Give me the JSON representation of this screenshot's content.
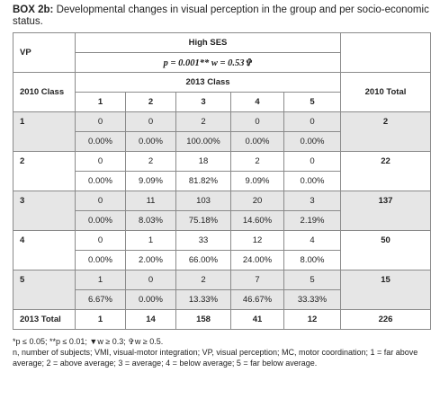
{
  "caption": {
    "label": "BOX 2b:",
    "text": " Developmental changes in visual perception in the group and per socio-economic status."
  },
  "table": {
    "vp_label": "VP",
    "group_label": "High SES",
    "stat_text": "p = 0.001** w = 0.53✞",
    "row_group_label": "2010 Class",
    "col_group_label": "2013 Class",
    "total_col_label": "2010 Total",
    "col_headers": [
      "1",
      "2",
      "3",
      "4",
      "5"
    ],
    "rows": [
      {
        "label": "1",
        "counts": [
          "0",
          "0",
          "2",
          "0",
          "0"
        ],
        "percents": [
          "0.00%",
          "0.00%",
          "100.00%",
          "0.00%",
          "0.00%"
        ],
        "total": "2"
      },
      {
        "label": "2",
        "counts": [
          "0",
          "2",
          "18",
          "2",
          "0"
        ],
        "percents": [
          "0.00%",
          "9.09%",
          "81.82%",
          "9.09%",
          "0.00%"
        ],
        "total": "22"
      },
      {
        "label": "3",
        "counts": [
          "0",
          "11",
          "103",
          "20",
          "3"
        ],
        "percents": [
          "0.00%",
          "8.03%",
          "75.18%",
          "14.60%",
          "2.19%"
        ],
        "total": "137"
      },
      {
        "label": "4",
        "counts": [
          "0",
          "1",
          "33",
          "12",
          "4"
        ],
        "percents": [
          "0.00%",
          "2.00%",
          "66.00%",
          "24.00%",
          "8.00%"
        ],
        "total": "50"
      },
      {
        "label": "5",
        "counts": [
          "1",
          "0",
          "2",
          "7",
          "5"
        ],
        "percents": [
          "6.67%",
          "0.00%",
          "13.33%",
          "46.67%",
          "33.33%"
        ],
        "total": "15"
      }
    ],
    "total_row": {
      "label": "2013 Total",
      "values": [
        "1",
        "14",
        "158",
        "41",
        "12"
      ],
      "grand_total": "226"
    }
  },
  "footnotes": {
    "line1": "*p ≤ 0.05; **p ≤ 0.01; ▼w ≥ 0.3; ✞w ≥ 0.5.",
    "line2": "n, number of subjects; VMI, visual-motor integration; VP, visual perception; MC, motor coordination; 1 = far above average; 2 = above average; 3 = average; 4 = below average; 5 = far below average."
  },
  "colors": {
    "shade": "#e6e6e6",
    "border": "#8a8a8a",
    "text": "#222222"
  }
}
